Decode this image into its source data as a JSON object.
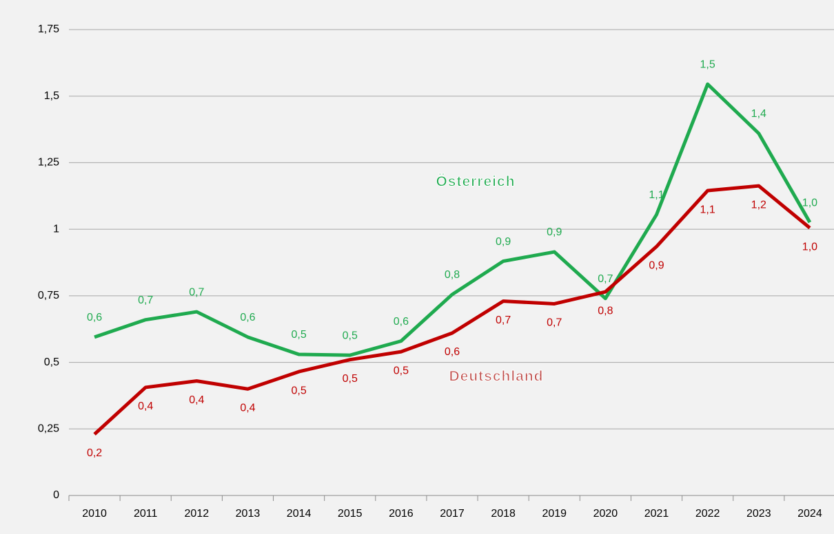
{
  "chart_data": {
    "type": "line",
    "categories": [
      "2010",
      "2011",
      "2012",
      "2013",
      "2014",
      "2015",
      "2016",
      "2017",
      "2018",
      "2019",
      "2020",
      "2021",
      "2022",
      "2023",
      "2024"
    ],
    "series": [
      {
        "name": "Österreich",
        "color": "#1faa4f",
        "values": [
          0.595,
          0.66,
          0.69,
          0.595,
          0.53,
          0.527,
          0.58,
          0.755,
          0.88,
          0.915,
          0.74,
          1.055,
          1.545,
          1.36,
          1.026
        ],
        "value_labels": [
          "0,6",
          "0,7",
          "0,7",
          "0,6",
          "0,5",
          "0,5",
          "0,6",
          "0,8",
          "0,9",
          "0,9",
          "0,7",
          "1,1",
          "1,5",
          "1,4",
          "1,0"
        ]
      },
      {
        "name": "Deutschland",
        "color": "#c00000",
        "values": [
          0.23,
          0.406,
          0.43,
          0.4,
          0.465,
          0.51,
          0.54,
          0.61,
          0.73,
          0.72,
          0.765,
          0.935,
          1.145,
          1.163,
          1.005
        ],
        "value_labels": [
          "0,2",
          "0,4",
          "0,4",
          "0,4",
          "0,5",
          "0,5",
          "0,5",
          "0,6",
          "0,7",
          "0,7",
          "0,8",
          "0,9",
          "1,1",
          "1,2",
          "1,0"
        ]
      }
    ],
    "ylim": [
      0,
      1.75
    ],
    "yticks": [
      0,
      {
        "value": 0.25,
        "label": "0,25"
      },
      {
        "value": 0.5,
        "label": "0,5"
      },
      {
        "value": 0.75,
        "label": "0,75"
      },
      1,
      {
        "value": 1.25,
        "label": "1,25"
      },
      {
        "value": 1.5,
        "label": "1,5"
      },
      {
        "value": 1.75,
        "label": "1,75"
      }
    ],
    "grid": true
  }
}
